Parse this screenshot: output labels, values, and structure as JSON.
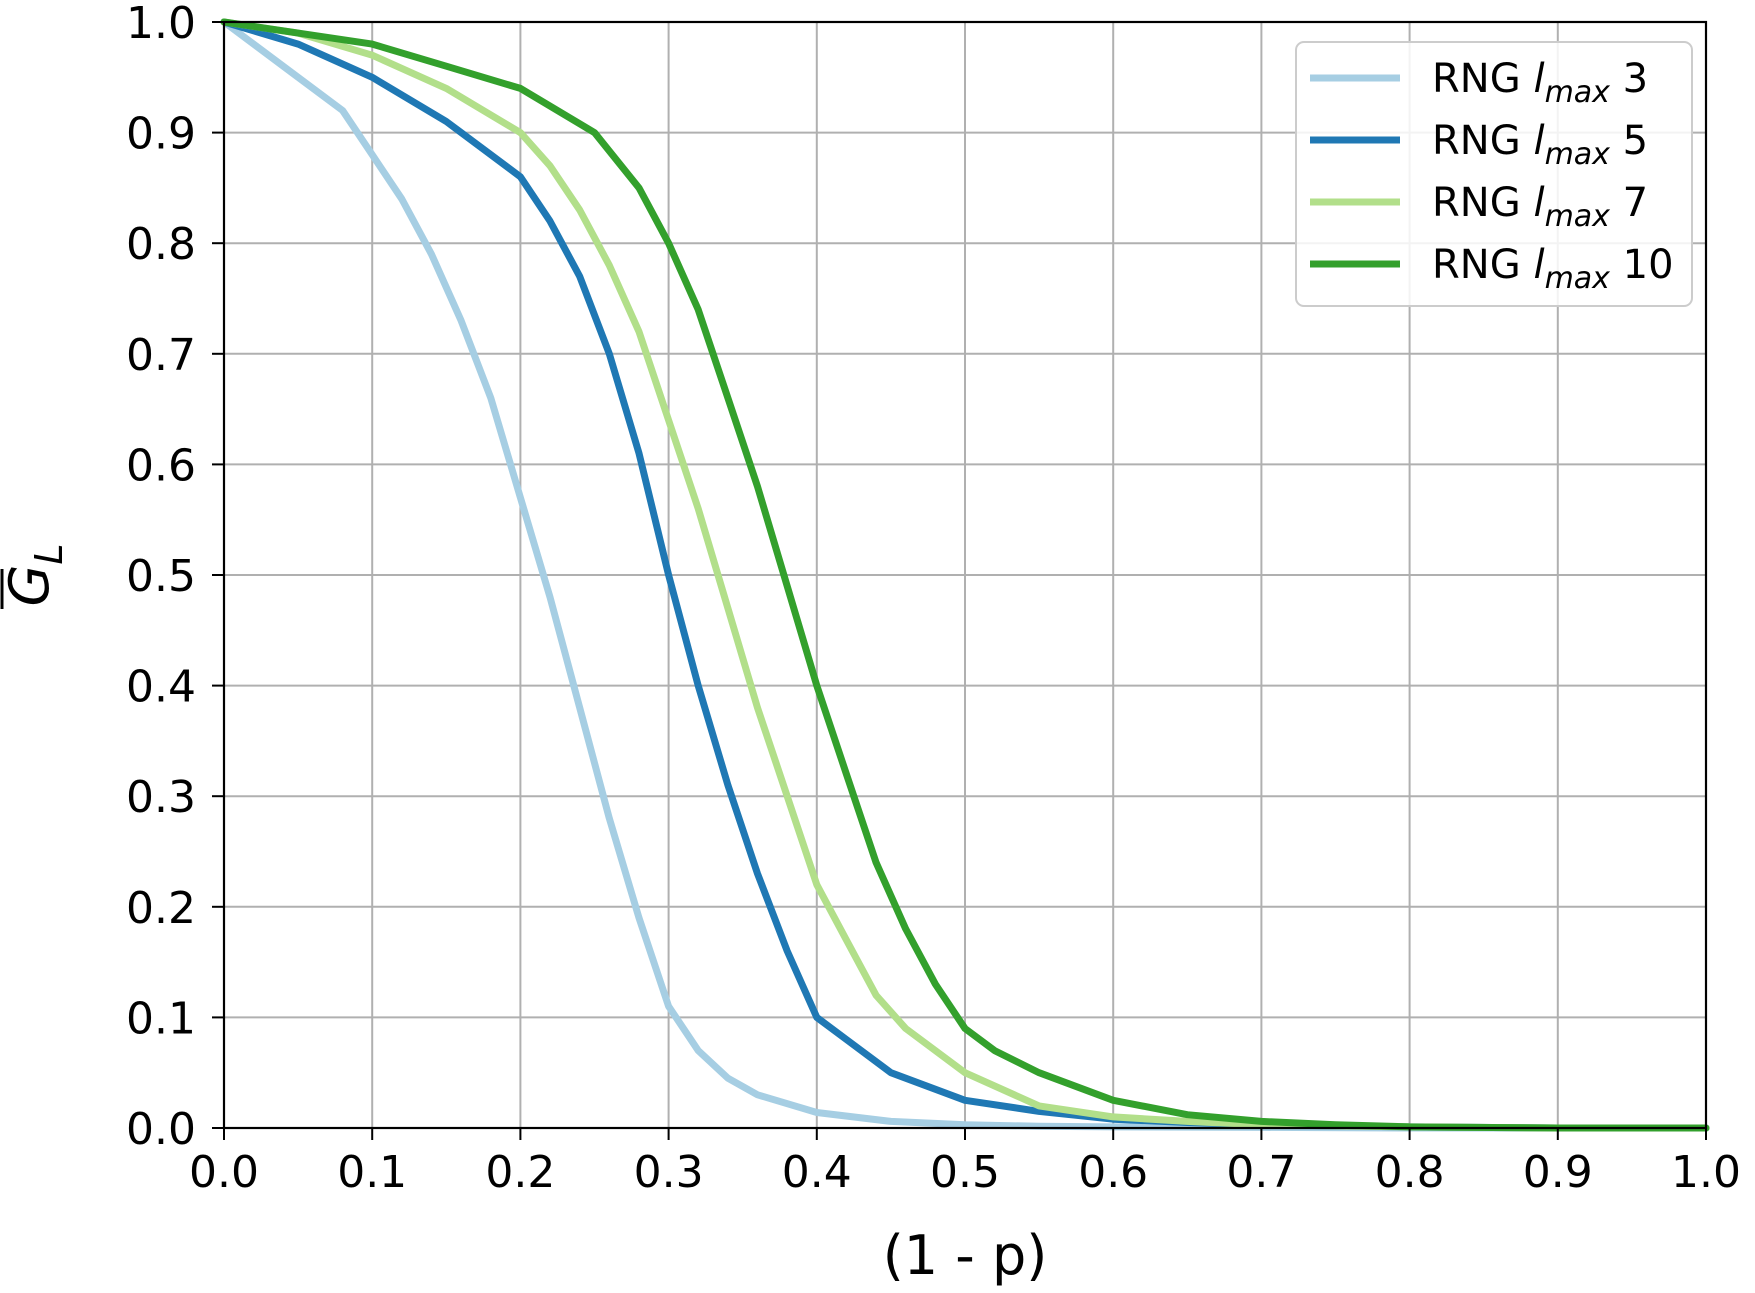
{
  "chart_data": {
    "type": "line",
    "xlabel": "(1 - p)",
    "ylabel": "G_L",
    "ylabel_parts": {
      "main": "G",
      "sub": "L",
      "overline": true
    },
    "xlim": [
      0.0,
      1.0
    ],
    "ylim": [
      0.0,
      1.0
    ],
    "xticks": [
      "0.0",
      "0.1",
      "0.2",
      "0.3",
      "0.4",
      "0.5",
      "0.6",
      "0.7",
      "0.8",
      "0.9",
      "1.0"
    ],
    "yticks": [
      "0.0",
      "0.1",
      "0.2",
      "0.3",
      "0.4",
      "0.5",
      "0.6",
      "0.7",
      "0.8",
      "0.9",
      "1.0"
    ],
    "grid": true,
    "legend_position": "top-right",
    "series": [
      {
        "name": "RNG l_max 3",
        "legend": {
          "prefix": "RNG ",
          "var": "l",
          "sub": "max",
          "suffix": " 3"
        },
        "color": "#a6cee3",
        "x": [
          0.0,
          0.02,
          0.05,
          0.08,
          0.1,
          0.12,
          0.14,
          0.16,
          0.18,
          0.2,
          0.22,
          0.24,
          0.26,
          0.28,
          0.3,
          0.32,
          0.34,
          0.36,
          0.4,
          0.45,
          0.5,
          0.55,
          0.6,
          0.7,
          0.8,
          0.9,
          1.0
        ],
        "y": [
          1.0,
          0.98,
          0.95,
          0.92,
          0.88,
          0.84,
          0.79,
          0.73,
          0.66,
          0.57,
          0.48,
          0.38,
          0.28,
          0.19,
          0.11,
          0.07,
          0.045,
          0.03,
          0.014,
          0.006,
          0.003,
          0.0015,
          0.001,
          0.0005,
          0.0,
          0.0,
          0.0
        ]
      },
      {
        "name": "RNG l_max 5",
        "legend": {
          "prefix": "RNG ",
          "var": "l",
          "sub": "max",
          "suffix": " 5"
        },
        "color": "#1f78b4",
        "x": [
          0.0,
          0.05,
          0.1,
          0.15,
          0.2,
          0.22,
          0.24,
          0.26,
          0.28,
          0.3,
          0.32,
          0.34,
          0.36,
          0.38,
          0.4,
          0.42,
          0.45,
          0.5,
          0.55,
          0.6,
          0.65,
          0.7,
          0.8,
          0.9,
          1.0
        ],
        "y": [
          1.0,
          0.98,
          0.95,
          0.91,
          0.86,
          0.82,
          0.77,
          0.7,
          0.61,
          0.5,
          0.4,
          0.31,
          0.23,
          0.16,
          0.1,
          0.08,
          0.05,
          0.025,
          0.015,
          0.008,
          0.005,
          0.003,
          0.001,
          0.0,
          0.0
        ]
      },
      {
        "name": "RNG l_max 7",
        "legend": {
          "prefix": "RNG ",
          "var": "l",
          "sub": "max",
          "suffix": " 7"
        },
        "color": "#b2df8a",
        "x": [
          0.0,
          0.05,
          0.1,
          0.15,
          0.2,
          0.22,
          0.24,
          0.26,
          0.28,
          0.3,
          0.32,
          0.34,
          0.36,
          0.38,
          0.4,
          0.42,
          0.44,
          0.46,
          0.5,
          0.55,
          0.6,
          0.65,
          0.7,
          0.8,
          0.9,
          1.0
        ],
        "y": [
          1.0,
          0.99,
          0.97,
          0.94,
          0.9,
          0.87,
          0.83,
          0.78,
          0.72,
          0.64,
          0.56,
          0.47,
          0.38,
          0.3,
          0.22,
          0.17,
          0.12,
          0.09,
          0.05,
          0.02,
          0.01,
          0.006,
          0.003,
          0.001,
          0.0,
          0.0
        ]
      },
      {
        "name": "RNG l_max 10",
        "legend": {
          "prefix": "RNG ",
          "var": "l",
          "sub": "max",
          "suffix": " 10"
        },
        "color": "#33a02c",
        "x": [
          0.0,
          0.05,
          0.1,
          0.15,
          0.2,
          0.25,
          0.28,
          0.3,
          0.32,
          0.34,
          0.36,
          0.38,
          0.4,
          0.42,
          0.44,
          0.46,
          0.48,
          0.5,
          0.52,
          0.55,
          0.6,
          0.65,
          0.7,
          0.75,
          0.8,
          0.9,
          1.0
        ],
        "y": [
          1.0,
          0.99,
          0.98,
          0.96,
          0.94,
          0.9,
          0.85,
          0.8,
          0.74,
          0.66,
          0.58,
          0.49,
          0.4,
          0.32,
          0.24,
          0.18,
          0.13,
          0.09,
          0.07,
          0.05,
          0.025,
          0.012,
          0.006,
          0.003,
          0.001,
          0.0,
          0.0
        ]
      }
    ]
  }
}
